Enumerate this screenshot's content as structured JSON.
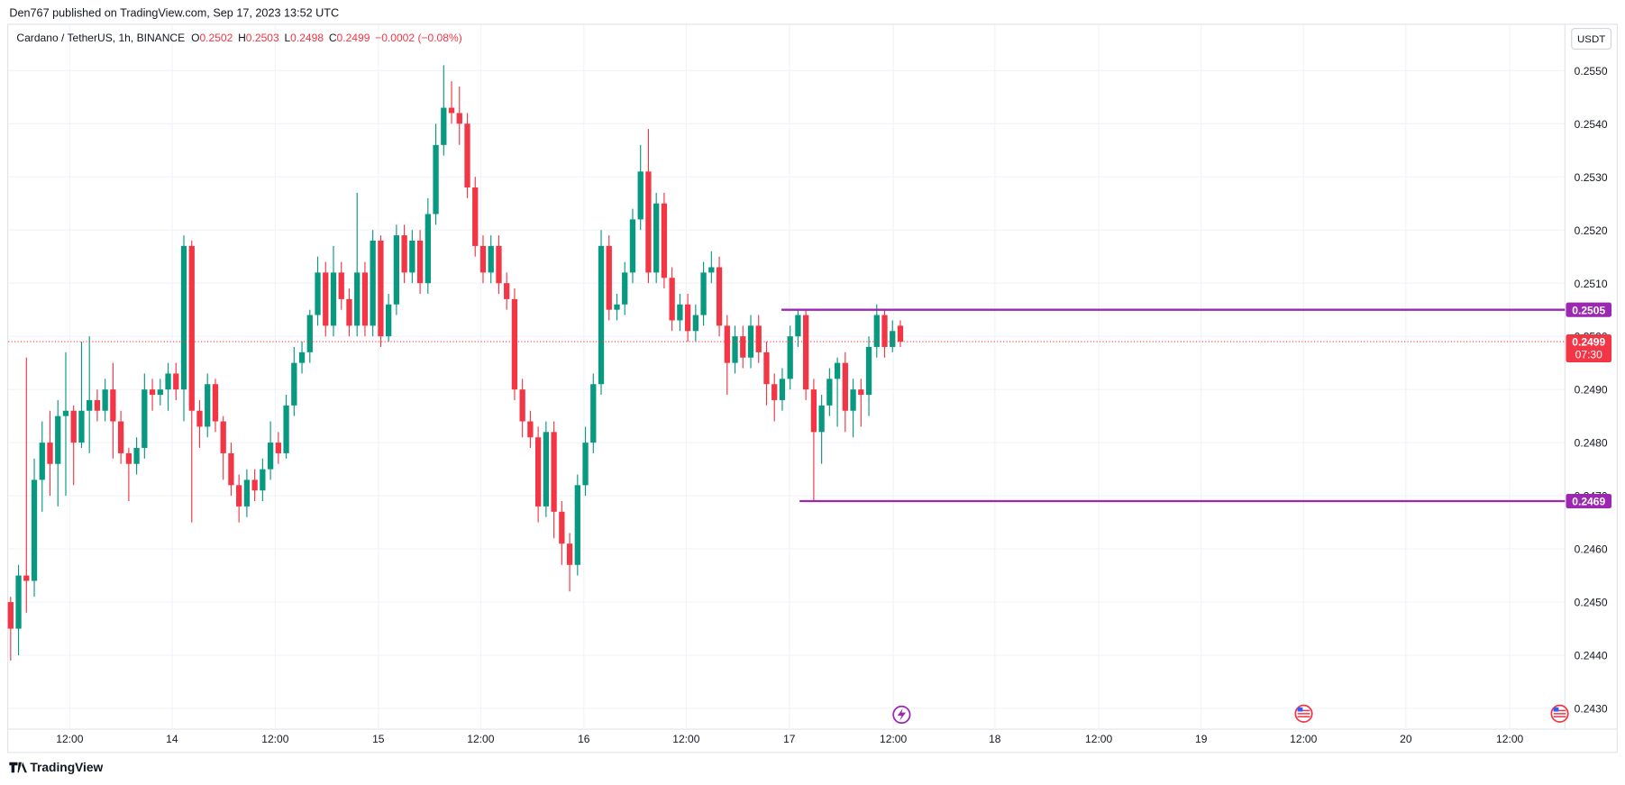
{
  "header": {
    "publisher": "Den767 published on TradingView.com, Sep 17, 2023 13:52 UTC",
    "footer": "TradingView"
  },
  "chart_data": {
    "type": "candlestick",
    "legend": {
      "symbol": "Cardano / TetherUS, 1h, BINANCE",
      "o_label": "O",
      "o": "0.2502",
      "h_label": "H",
      "h": "0.2503",
      "l_label": "L",
      "l": "0.2498",
      "c_label": "C",
      "c": "0.2499",
      "change": "−0.0002 (−0.08%)"
    },
    "currency": "USDT",
    "up_color": "#089981",
    "down_color": "#f23645",
    "open": [
      0.245,
      0.2445,
      0.2455,
      0.2454,
      0.2473,
      0.248,
      0.2476,
      0.2485,
      0.2486,
      0.248,
      0.2486,
      0.2488,
      0.2486,
      0.249,
      0.2484,
      0.2478,
      0.2476,
      0.2479,
      0.249,
      0.2489,
      0.249,
      0.2493,
      0.249,
      0.2517,
      0.2486,
      0.2483,
      0.2491,
      0.2484,
      0.2478,
      0.2472,
      0.2468,
      0.2473,
      0.2471,
      0.2475,
      0.248,
      0.2478,
      0.2487,
      0.2495,
      0.2497,
      0.2504,
      0.2512,
      0.2502,
      0.2512,
      0.2507,
      0.2502,
      0.2512,
      0.2502,
      0.2518,
      0.25,
      0.2506,
      0.2519,
      0.2512,
      0.2518,
      0.251,
      0.2523,
      0.2536,
      0.2543,
      0.2542,
      0.254,
      0.2528,
      0.2517,
      0.2512,
      0.2517,
      0.251,
      0.2507,
      0.249,
      0.2484,
      0.2481,
      0.2468,
      0.2482,
      0.2467,
      0.2461,
      0.2457,
      0.2472,
      0.248,
      0.2491,
      0.2517,
      0.2505,
      0.2506,
      0.2512,
      0.2522,
      0.2531,
      0.2512,
      0.2525,
      0.2511,
      0.2503,
      0.2506,
      0.2501,
      0.2504,
      0.2512,
      0.2513,
      0.2502,
      0.2495,
      0.25,
      0.2496,
      0.2502,
      0.2497,
      0.2491,
      0.2488,
      0.2492,
      0.25,
      0.2504,
      0.249,
      0.2482,
      0.2487,
      0.2492,
      0.2495,
      0.2486,
      0.249,
      0.2489,
      0.2498,
      0.2504,
      0.2498,
      0.2502
    ],
    "high": [
      0.2451,
      0.2457,
      0.2496,
      0.2477,
      0.2484,
      0.2486,
      0.2488,
      0.2497,
      0.2487,
      0.2499,
      0.25,
      0.249,
      0.2492,
      0.2495,
      0.2486,
      0.2479,
      0.2481,
      0.2493,
      0.2492,
      0.2492,
      0.2495,
      0.2495,
      0.2519,
      0.2518,
      0.2488,
      0.2493,
      0.2492,
      0.2485,
      0.248,
      0.2474,
      0.2475,
      0.2475,
      0.2477,
      0.2484,
      0.2482,
      0.2489,
      0.2498,
      0.2499,
      0.2505,
      0.2515,
      0.2514,
      0.2517,
      0.2514,
      0.2509,
      0.2527,
      0.2514,
      0.252,
      0.2519,
      0.2508,
      0.2521,
      0.2521,
      0.252,
      0.252,
      0.2526,
      0.254,
      0.2551,
      0.2548,
      0.2547,
      0.2542,
      0.253,
      0.2519,
      0.2519,
      0.2519,
      0.2512,
      0.2509,
      0.2492,
      0.2486,
      0.2483,
      0.2484,
      0.2484,
      0.2469,
      0.2463,
      0.2474,
      0.2483,
      0.2493,
      0.252,
      0.2519,
      0.2508,
      0.2514,
      0.2524,
      0.2536,
      0.2539,
      0.2527,
      0.2527,
      0.2513,
      0.2508,
      0.2508,
      0.2506,
      0.2514,
      0.2516,
      0.2515,
      0.2504,
      0.2502,
      0.2502,
      0.2504,
      0.2504,
      0.2499,
      0.2493,
      0.2494,
      0.2502,
      0.2505,
      0.2505,
      0.2492,
      0.2489,
      0.2494,
      0.2496,
      0.2497,
      0.2492,
      0.2492,
      0.25,
      0.2506,
      0.2505,
      0.2503,
      0.2503
    ],
    "low": [
      0.2439,
      0.244,
      0.2448,
      0.2451,
      0.2467,
      0.247,
      0.2468,
      0.247,
      0.2472,
      0.2479,
      0.2478,
      0.2484,
      0.2484,
      0.2477,
      0.2476,
      0.2469,
      0.2474,
      0.2477,
      0.2486,
      0.2487,
      0.2486,
      0.2488,
      0.2484,
      0.2465,
      0.2479,
      0.2481,
      0.2482,
      0.2473,
      0.247,
      0.2465,
      0.2466,
      0.2469,
      0.2469,
      0.2473,
      0.2476,
      0.2477,
      0.2485,
      0.2493,
      0.2495,
      0.2502,
      0.25,
      0.25,
      0.2505,
      0.25,
      0.25,
      0.25,
      0.25,
      0.2498,
      0.2499,
      0.2504,
      0.251,
      0.251,
      0.2508,
      0.2508,
      0.2521,
      0.2534,
      0.254,
      0.2536,
      0.2526,
      0.2515,
      0.251,
      0.251,
      0.2508,
      0.2505,
      0.2488,
      0.2481,
      0.2479,
      0.2465,
      0.2466,
      0.2462,
      0.2457,
      0.2452,
      0.2455,
      0.247,
      0.2478,
      0.2489,
      0.2503,
      0.2503,
      0.2504,
      0.251,
      0.252,
      0.251,
      0.251,
      0.2509,
      0.2501,
      0.2501,
      0.2499,
      0.2499,
      0.2502,
      0.251,
      0.25,
      0.2489,
      0.2493,
      0.2494,
      0.2494,
      0.2495,
      0.2487,
      0.2484,
      0.2486,
      0.249,
      0.2498,
      0.2488,
      0.2469,
      0.2476,
      0.2485,
      0.2483,
      0.2482,
      0.2481,
      0.2483,
      0.2485,
      0.2496,
      0.2496,
      0.2497,
      0.2498
    ],
    "close": [
      0.2445,
      0.2455,
      0.2454,
      0.2473,
      0.248,
      0.2476,
      0.2485,
      0.2486,
      0.248,
      0.2486,
      0.2488,
      0.2486,
      0.249,
      0.2484,
      0.2478,
      0.2476,
      0.2479,
      0.249,
      0.2489,
      0.249,
      0.2493,
      0.249,
      0.2517,
      0.2486,
      0.2483,
      0.2491,
      0.2484,
      0.2478,
      0.2472,
      0.2468,
      0.2473,
      0.2471,
      0.2475,
      0.248,
      0.2478,
      0.2487,
      0.2495,
      0.2497,
      0.2504,
      0.2512,
      0.2502,
      0.2512,
      0.2507,
      0.2502,
      0.2512,
      0.2502,
      0.2518,
      0.25,
      0.2506,
      0.2519,
      0.2512,
      0.2518,
      0.251,
      0.2523,
      0.2536,
      0.2543,
      0.2542,
      0.254,
      0.2528,
      0.2517,
      0.2512,
      0.2517,
      0.251,
      0.2507,
      0.249,
      0.2484,
      0.2481,
      0.2468,
      0.2482,
      0.2467,
      0.2461,
      0.2457,
      0.2472,
      0.248,
      0.2491,
      0.2517,
      0.2505,
      0.2506,
      0.2512,
      0.2522,
      0.2531,
      0.2512,
      0.2525,
      0.2511,
      0.2503,
      0.2506,
      0.2501,
      0.2504,
      0.2512,
      0.2513,
      0.2502,
      0.2495,
      0.25,
      0.2496,
      0.2502,
      0.2497,
      0.2491,
      0.2488,
      0.2492,
      0.25,
      0.2504,
      0.249,
      0.2482,
      0.2487,
      0.2492,
      0.2495,
      0.2486,
      0.249,
      0.2489,
      0.2498,
      0.2504,
      0.2498,
      0.2501,
      0.2499
    ],
    "xlim": [
      -0.3,
      197.4
    ],
    "xticks": [
      {
        "value": 7.5,
        "label": "12:00"
      },
      {
        "value": 20.5,
        "label": "14"
      },
      {
        "value": 33.6,
        "label": "12:00"
      },
      {
        "value": 46.7,
        "label": "15"
      },
      {
        "value": 59.7,
        "label": "12:00"
      },
      {
        "value": 72.8,
        "label": "16"
      },
      {
        "value": 85.8,
        "label": "12:00"
      },
      {
        "value": 98.9,
        "label": "17"
      },
      {
        "value": 112.1,
        "label": "12:00"
      },
      {
        "value": 125,
        "label": "18"
      },
      {
        "value": 138.2,
        "label": "12:00"
      },
      {
        "value": 151.2,
        "label": "19"
      },
      {
        "value": 164.2,
        "label": "12:00"
      },
      {
        "value": 177.2,
        "label": "20"
      },
      {
        "value": 190.4,
        "label": "12:00"
      }
    ],
    "ylim": [
      0.24261,
      0.25586
    ],
    "yticks": [
      {
        "value": 0.243,
        "label": "0.2430"
      },
      {
        "value": 0.244,
        "label": "0.2440"
      },
      {
        "value": 0.245,
        "label": "0.2450"
      },
      {
        "value": 0.246,
        "label": "0.2460"
      },
      {
        "value": 0.247,
        "label": "0.2470"
      },
      {
        "value": 0.248,
        "label": "0.2480"
      },
      {
        "value": 0.249,
        "label": "0.2490"
      },
      {
        "value": 0.25,
        "label": "0.2500"
      },
      {
        "value": 0.251,
        "label": "0.2510"
      },
      {
        "value": 0.252,
        "label": "0.2520"
      },
      {
        "value": 0.253,
        "label": "0.2530"
      },
      {
        "value": 0.254,
        "label": "0.2540"
      },
      {
        "value": 0.255,
        "label": "0.2550"
      }
    ],
    "grid": true,
    "levels": [
      {
        "value": 0.2505,
        "x_start": 97.9,
        "color": "#9c27b0"
      },
      {
        "value": 0.2469,
        "x_start": 100.2,
        "color": "#9c27b0"
      }
    ],
    "last_price": 0.2499,
    "countdown": "07:30"
  }
}
